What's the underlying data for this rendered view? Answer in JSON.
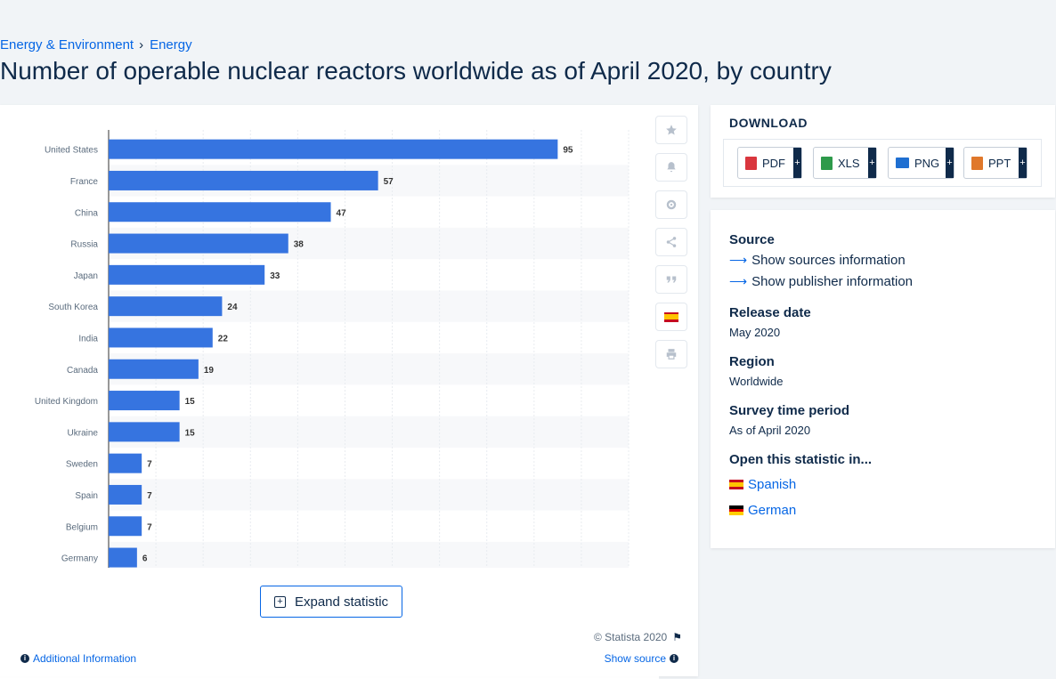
{
  "breadcrumb": [
    "Energy & Environment",
    "Energy"
  ],
  "title": "Number of operable nuclear reactors worldwide as of April 2020, by country",
  "chart_data": {
    "type": "bar",
    "orientation": "horizontal",
    "categories": [
      "United States",
      "France",
      "China",
      "Russia",
      "Japan",
      "South Korea",
      "India",
      "Canada",
      "United Kingdom",
      "Ukraine",
      "Sweden",
      "Spain",
      "Belgium",
      "Germany"
    ],
    "values": [
      95,
      57,
      47,
      38,
      33,
      24,
      22,
      19,
      15,
      15,
      7,
      7,
      7,
      6
    ],
    "xlim": [
      0,
      110
    ],
    "grid": true,
    "bar_color": "#3674e0"
  },
  "tools": [
    "star-icon",
    "bell-icon",
    "gear-icon",
    "share-icon",
    "quote-icon",
    "spanish-flag-icon",
    "print-icon"
  ],
  "expand_label": "Expand statistic",
  "copyright": "© Statista 2020",
  "additional_label": "Additional Information",
  "show_source_label": "Show source",
  "download": {
    "title": "DOWNLOAD",
    "formats": [
      {
        "label": "PDF",
        "color": "#d9363e"
      },
      {
        "label": "XLS",
        "color": "#2e9a4b"
      },
      {
        "label": "PNG",
        "color": "#1f6fd1"
      },
      {
        "label": "PPT",
        "color": "#e0782b"
      }
    ],
    "plus": "+"
  },
  "info": {
    "source_heading": "Source",
    "show_sources": "Show sources information",
    "show_publisher": "Show publisher information",
    "release_heading": "Release date",
    "release_value": "May 2020",
    "region_heading": "Region",
    "region_value": "Worldwide",
    "survey_heading": "Survey time period",
    "survey_value": "As of April 2020",
    "open_heading": "Open this statistic in...",
    "languages": [
      "Spanish",
      "German"
    ]
  }
}
